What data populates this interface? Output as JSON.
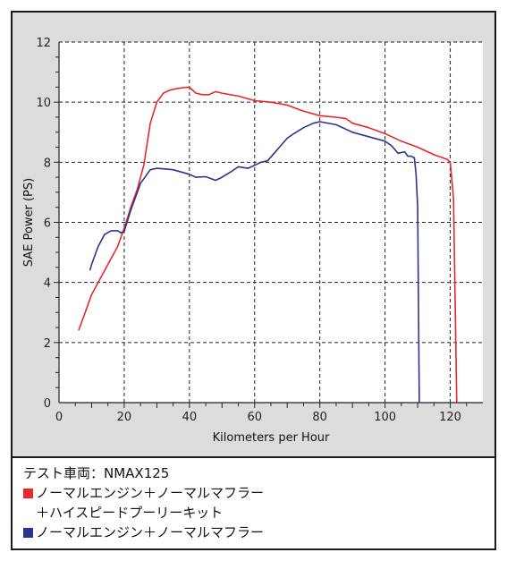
{
  "chart_data": {
    "type": "line",
    "xlabel": "Kilometers per Hour",
    "ylabel": "SAE Power (PS)",
    "xlim": [
      0,
      130
    ],
    "ylim": [
      0,
      12
    ],
    "xticks": [
      0,
      20,
      40,
      60,
      80,
      100,
      120
    ],
    "yticks": [
      0,
      2,
      4,
      6,
      8,
      10,
      12
    ],
    "grid": true,
    "series": [
      {
        "name": "ノーマルエンジン＋ノーマルマフラー＋ハイスピードプーリーキット",
        "color": "#e8282d",
        "x": [
          6,
          8,
          10,
          12,
          15,
          18,
          20,
          22,
          24,
          26,
          27,
          28,
          30,
          32,
          34,
          36,
          38,
          40,
          42,
          44,
          46,
          48,
          50,
          55,
          60,
          65,
          70,
          75,
          80,
          85,
          88,
          90,
          95,
          100,
          105,
          110,
          115,
          119,
          120,
          121,
          122
        ],
        "y": [
          2.4,
          3.0,
          3.6,
          4.0,
          4.6,
          5.2,
          5.8,
          6.5,
          7.1,
          7.9,
          8.6,
          9.3,
          10.0,
          10.3,
          10.4,
          10.45,
          10.48,
          10.5,
          10.3,
          10.25,
          10.25,
          10.35,
          10.3,
          10.2,
          10.05,
          10.0,
          9.9,
          9.7,
          9.55,
          9.5,
          9.45,
          9.3,
          9.15,
          8.95,
          8.7,
          8.5,
          8.25,
          8.1,
          8.0,
          6.8,
          0.0
        ]
      },
      {
        "name": "ノーマルエンジン＋ノーマルマフラー",
        "color": "#2b3390",
        "x": [
          9.5,
          10,
          12,
          14,
          16,
          18,
          19,
          20,
          22,
          25,
          28,
          30,
          32,
          35,
          40,
          42,
          45,
          48,
          50,
          53,
          55,
          58,
          60,
          62,
          64,
          66,
          68,
          70,
          72,
          75,
          78,
          80,
          85,
          90,
          95,
          100,
          102,
          104,
          106,
          107,
          108,
          109,
          109.5,
          110,
          110.5
        ],
        "y": [
          4.4,
          4.6,
          5.2,
          5.6,
          5.72,
          5.72,
          5.65,
          5.7,
          6.4,
          7.3,
          7.75,
          7.8,
          7.78,
          7.75,
          7.6,
          7.5,
          7.52,
          7.4,
          7.5,
          7.7,
          7.85,
          7.8,
          7.9,
          8.0,
          8.05,
          8.3,
          8.55,
          8.8,
          8.95,
          9.15,
          9.3,
          9.35,
          9.25,
          9.0,
          8.85,
          8.7,
          8.55,
          8.3,
          8.35,
          8.2,
          8.2,
          8.15,
          7.6,
          6.5,
          0.0
        ]
      }
    ]
  },
  "legend": {
    "vehicle_label": "テスト車両：NMAX125",
    "entries": [
      {
        "line1": "ノーマルエンジン＋ノーマルマフラー",
        "line2": "＋ハイスピードプーリーキット",
        "color": "#e8282d"
      },
      {
        "line1": "ノーマルエンジン＋ノーマルマフラー",
        "color": "#2b3390"
      }
    ]
  }
}
